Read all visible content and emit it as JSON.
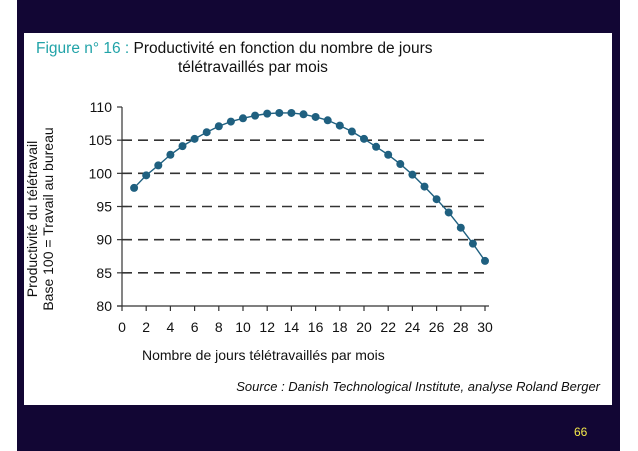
{
  "slide": {
    "figure_label": "Figure n° 16 :",
    "title_line1": " Productivité en fonction du nombre de jours",
    "title_line2": "télétravaillés par mois",
    "source": "Source : Danish Technological Institute, analyse Roland Berger",
    "page_number": "66",
    "colors": {
      "background": "#120634",
      "panel": "#ffffff",
      "accent": "#21a3a8",
      "series": "#1f6080",
      "page_number": "#f4e94a"
    }
  },
  "chart_data": {
    "type": "line",
    "title": "Figure n° 16 : Productivité en fonction du nombre de jours télétravaillés par mois",
    "xlabel": "Nombre de jours télétravaillés par mois",
    "ylabel": "Productivité du télétravail Base 100 = Travail au bureau",
    "ylabel_line1": "Productivité du télétravail",
    "ylabel_line2": "Base 100 = Travail au bureau",
    "xlim": [
      0,
      30
    ],
    "ylim": [
      80,
      110
    ],
    "x_ticks": [
      0,
      2,
      4,
      6,
      8,
      10,
      12,
      14,
      16,
      18,
      20,
      22,
      24,
      26,
      28,
      30
    ],
    "y_ticks": [
      80,
      85,
      90,
      95,
      100,
      105,
      110
    ],
    "grid": "horizontal dashed at 85, 90, 95, 100, 105",
    "legend": "none",
    "x": [
      1,
      2,
      3,
      4,
      5,
      6,
      7,
      8,
      9,
      10,
      11,
      12,
      13,
      14,
      15,
      16,
      17,
      18,
      19,
      20,
      21,
      22,
      23,
      24,
      25,
      26,
      27,
      28,
      29,
      30
    ],
    "series": [
      {
        "name": "Productivité",
        "values": [
          97.8,
          99.7,
          101.2,
          102.8,
          104.1,
          105.2,
          106.2,
          107.1,
          107.8,
          108.3,
          108.7,
          109.0,
          109.1,
          109.1,
          108.9,
          108.5,
          108.0,
          107.2,
          106.3,
          105.2,
          104.0,
          102.8,
          101.4,
          99.8,
          98.0,
          96.1,
          94.1,
          91.8,
          89.4,
          86.8
        ]
      }
    ],
    "source": "Source : Danish Technological Institute, analyse Roland Berger"
  }
}
